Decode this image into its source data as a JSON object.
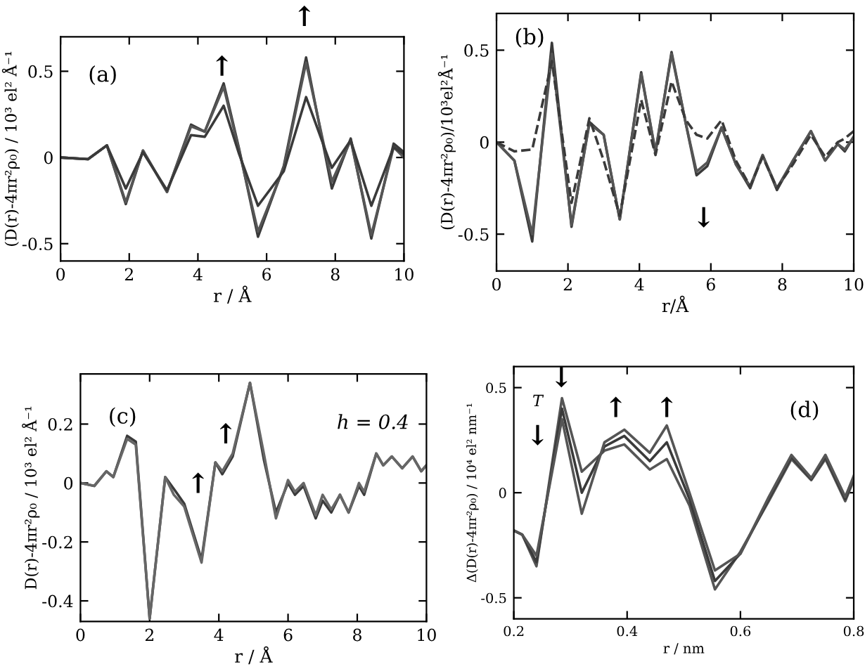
{
  "chart_data": [
    {
      "type": "line",
      "title": "(a)",
      "xlabel": "r / Å",
      "ylabel": "(D(r)-4πr²ρ₀) / 10³ el² Å⁻¹",
      "xlim": [
        0,
        10
      ],
      "ylim": [
        -0.6,
        0.7
      ],
      "xticks": [
        0,
        2,
        4,
        6,
        8,
        10
      ],
      "yticks": [
        -0.5,
        0,
        0.5
      ],
      "grid": false,
      "legend": false,
      "line_style": "solid",
      "x": [
        0,
        0.8,
        1.35,
        1.9,
        2.4,
        3.1,
        3.8,
        4.2,
        4.75,
        5.2,
        5.75,
        6.5,
        7.15,
        7.9,
        8.45,
        9.05,
        9.7,
        10
      ],
      "series": [
        {
          "color": "#3a3a3a",
          "values": [
            0,
            -0.01,
            0.07,
            -0.27,
            0.04,
            -0.2,
            0.19,
            0.15,
            0.43,
            0.05,
            -0.46,
            -0.05,
            0.58,
            -0.18,
            0.11,
            -0.47,
            0.08,
            0.03
          ]
        },
        {
          "color": "#555555",
          "values": [
            0,
            -0.01,
            0.07,
            -0.26,
            0.04,
            -0.2,
            0.18,
            0.15,
            0.41,
            0.04,
            -0.43,
            -0.06,
            0.55,
            -0.14,
            0.1,
            -0.45,
            0.06,
            0.0
          ]
        },
        {
          "color": "#3a3a3a",
          "values": [
            0,
            -0.01,
            0.07,
            -0.18,
            0.03,
            -0.19,
            0.13,
            0.12,
            0.3,
            0.02,
            -0.28,
            -0.08,
            0.35,
            -0.06,
            0.1,
            -0.28,
            0.06,
            0.02
          ]
        }
      ],
      "annotations": [
        "↑",
        "↑"
      ]
    },
    {
      "type": "line",
      "title": "(b)",
      "xlabel": "r/Å",
      "ylabel": "(D(r)-4πr²ρ₀)/10³el²Å⁻¹",
      "xlim": [
        0,
        10
      ],
      "ylim": [
        -0.7,
        0.7
      ],
      "xticks": [
        0,
        2,
        4,
        6,
        8,
        10
      ],
      "yticks": [
        -0.5,
        0,
        0.5
      ],
      "grid": false,
      "legend": false,
      "x": [
        0,
        0.5,
        1.0,
        1.55,
        2.1,
        2.6,
        3.0,
        3.45,
        4.05,
        4.45,
        4.9,
        5.3,
        5.6,
        5.9,
        6.3,
        6.7,
        7.1,
        7.45,
        7.85,
        8.3,
        8.8,
        9.2,
        9.55,
        9.75,
        10
      ],
      "series": [
        {
          "color": "#3a3a3a",
          "line_style": "solid",
          "values": [
            0,
            -0.1,
            -0.54,
            0.54,
            -0.46,
            0.11,
            0.04,
            -0.42,
            0.38,
            -0.06,
            0.49,
            0.1,
            -0.18,
            -0.13,
            0.08,
            -0.12,
            -0.25,
            -0.07,
            -0.26,
            -0.1,
            0.06,
            -0.1,
            -0.01,
            -0.05,
            0.03
          ]
        },
        {
          "color": "#555555",
          "line_style": "solid",
          "values": [
            0,
            -0.1,
            -0.5,
            0.48,
            -0.45,
            0.1,
            0.04,
            -0.42,
            0.37,
            -0.05,
            0.48,
            0.1,
            -0.16,
            -0.11,
            0.08,
            -0.12,
            -0.24,
            -0.07,
            -0.25,
            -0.1,
            0.06,
            -0.1,
            -0.01,
            -0.04,
            0.03
          ]
        },
        {
          "color": "#3a3a3a",
          "line_style": "dashed",
          "values": [
            0,
            -0.05,
            -0.04,
            0.44,
            -0.33,
            0.13,
            -0.1,
            -0.4,
            0.23,
            -0.07,
            0.33,
            0.12,
            0.04,
            0.02,
            0.12,
            -0.1,
            -0.24,
            -0.08,
            -0.25,
            -0.12,
            0.04,
            -0.08,
            0.0,
            0.02,
            0.06
          ]
        }
      ],
      "annotations": [
        "↓"
      ]
    },
    {
      "type": "line",
      "title": "(c)",
      "xlabel": "r / Å",
      "ylabel": "D(r)-4πr²ρ₀ / 10³ el² Å⁻¹",
      "xlim": [
        0,
        10
      ],
      "ylim": [
        -0.47,
        0.37
      ],
      "xticks": [
        0,
        2,
        4,
        6,
        8,
        10
      ],
      "yticks": [
        -0.4,
        -0.2,
        0,
        0.2
      ],
      "grid": false,
      "legend": false,
      "line_style": "solid",
      "x": [
        0,
        0.4,
        0.75,
        0.95,
        1.35,
        1.6,
        2.0,
        2.45,
        2.7,
        3.0,
        3.5,
        3.9,
        4.1,
        4.4,
        4.9,
        5.3,
        5.65,
        6.0,
        6.2,
        6.45,
        6.8,
        7.0,
        7.25,
        7.5,
        7.75,
        8.05,
        8.2,
        8.55,
        8.75,
        9.0,
        9.3,
        9.6,
        9.85,
        10
      ],
      "series": [
        {
          "color": "#3a3a3a",
          "values": [
            0,
            -0.01,
            0.04,
            0.02,
            0.16,
            0.14,
            -0.46,
            0.02,
            -0.02,
            -0.07,
            -0.26,
            0.07,
            0.03,
            0.09,
            0.34,
            0.08,
            -0.1,
            0.0,
            -0.04,
            -0.01,
            -0.12,
            -0.06,
            -0.1,
            -0.04,
            -0.1,
            -0.01,
            -0.04,
            0.1,
            0.06,
            0.09,
            0.05,
            0.09,
            0.04,
            0.06
          ]
        },
        {
          "color": "#666666",
          "values": [
            0,
            -0.01,
            0.04,
            0.02,
            0.15,
            0.13,
            -0.46,
            0.02,
            -0.04,
            -0.08,
            -0.27,
            0.07,
            0.04,
            0.1,
            0.34,
            0.1,
            -0.12,
            0.01,
            -0.03,
            0.0,
            -0.11,
            -0.04,
            -0.09,
            -0.04,
            -0.1,
            0.0,
            -0.03,
            0.1,
            0.06,
            0.09,
            0.05,
            0.09,
            0.04,
            0.06
          ]
        }
      ],
      "annotations": [
        "h = 0.4",
        "↑",
        "↑"
      ]
    },
    {
      "type": "line",
      "title": "(d)",
      "xlabel": "r / nm",
      "ylabel": "Δ(D(r)-4πr²ρ₀) / 10⁴ el² nm⁻¹",
      "xlim": [
        0.2,
        0.8
      ],
      "ylim": [
        -0.6,
        0.6
      ],
      "xticks": [
        0.2,
        0.4,
        0.6,
        0.8
      ],
      "yticks": [
        -0.5,
        0,
        0.5
      ],
      "grid": false,
      "legend": false,
      "line_style": "solid",
      "x": [
        0.2,
        0.215,
        0.24,
        0.285,
        0.32,
        0.36,
        0.395,
        0.44,
        0.47,
        0.51,
        0.555,
        0.6,
        0.65,
        0.69,
        0.725,
        0.75,
        0.785,
        0.8
      ],
      "series": [
        {
          "color": "#555555",
          "values": [
            -0.18,
            -0.2,
            -0.35,
            0.45,
            0.1,
            0.2,
            0.23,
            0.11,
            0.16,
            -0.06,
            -0.46,
            -0.28,
            -0.04,
            0.16,
            0.06,
            0.16,
            -0.04,
            0.06
          ]
        },
        {
          "color": "#3a3a3a",
          "values": [
            -0.18,
            -0.2,
            -0.33,
            0.4,
            0.0,
            0.22,
            0.27,
            0.15,
            0.24,
            -0.03,
            -0.42,
            -0.29,
            -0.03,
            0.17,
            0.065,
            0.17,
            -0.03,
            0.07
          ]
        },
        {
          "color": "#555555",
          "values": [
            -0.18,
            -0.2,
            -0.3,
            0.35,
            -0.1,
            0.24,
            0.3,
            0.19,
            0.32,
            0.0,
            -0.37,
            -0.29,
            -0.02,
            0.18,
            0.07,
            0.18,
            -0.02,
            0.08
          ]
        }
      ],
      "annotations": [
        "↓",
        "↑",
        "↑",
        "T",
        "↓"
      ]
    }
  ]
}
